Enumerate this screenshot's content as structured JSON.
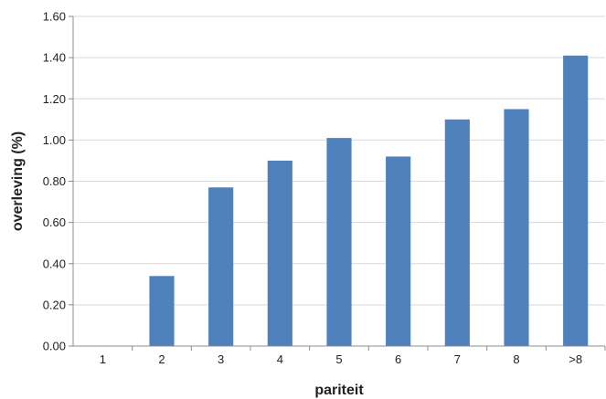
{
  "chart_data": {
    "type": "bar",
    "categories": [
      "1",
      "2",
      "3",
      "4",
      "5",
      "6",
      "7",
      "8",
      ">8"
    ],
    "values": [
      0.0,
      0.34,
      0.77,
      0.9,
      1.01,
      0.92,
      1.1,
      1.15,
      1.41
    ],
    "xlabel": "pariteit",
    "ylabel": "overleving (%)",
    "ylim": [
      0,
      1.6
    ],
    "yticks": [
      "0.00",
      "0.20",
      "0.40",
      "0.60",
      "0.80",
      "1.00",
      "1.20",
      "1.40",
      "1.60"
    ],
    "grid": "horizontal",
    "bar_color": "#4f81bd",
    "grid_color": "#d9d9d9",
    "legend": "none"
  }
}
